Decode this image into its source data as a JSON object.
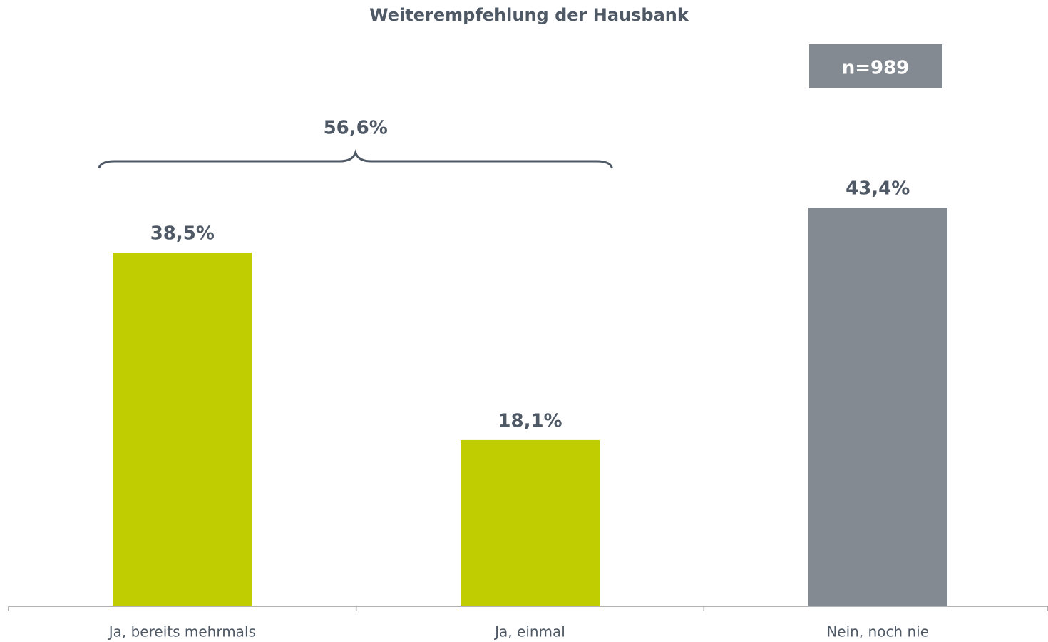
{
  "chart_data": {
    "type": "bar",
    "title": "Weiterempfehlung der Hausbank",
    "categories": [
      "Ja, bereits mehrmals",
      "Ja, einmal",
      "Nein, noch nie"
    ],
    "values": [
      38.5,
      18.1,
      43.4
    ],
    "value_labels": [
      "38,5%",
      "18,1%",
      "43,4%"
    ],
    "colors": [
      "#c0cd00",
      "#c0cd00",
      "#838a92"
    ],
    "ylim": [
      0,
      66
    ],
    "note": "n=989",
    "bracket": {
      "value": 56.6,
      "label": "56,6%"
    }
  }
}
